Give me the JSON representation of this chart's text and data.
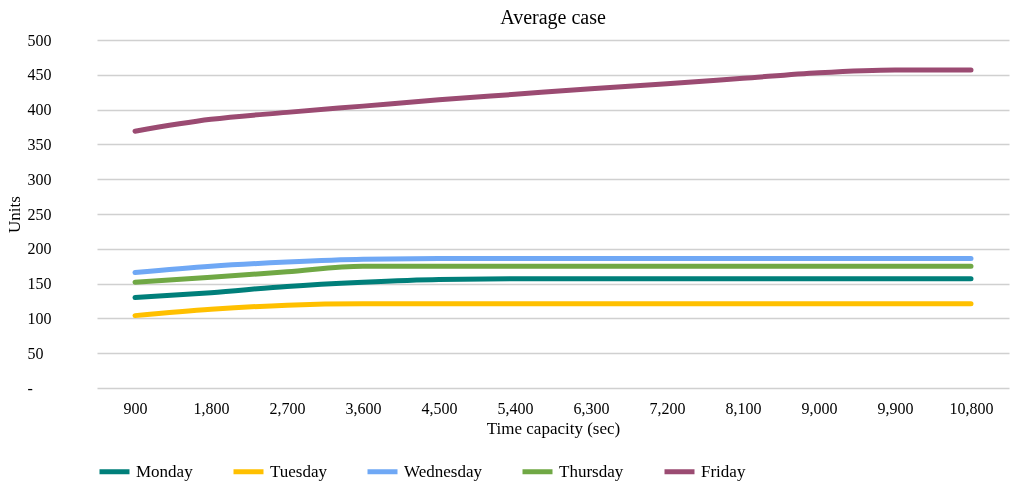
{
  "chart_data": {
    "type": "line",
    "title": "Average case",
    "xlabel": "Time capacity (sec)",
    "ylabel": "Units",
    "categories": [
      "900",
      "1,800",
      "2,700",
      "3,600",
      "4,500",
      "5,400",
      "6,300",
      "7,200",
      "8,100",
      "9,000",
      "9,900",
      "10,800"
    ],
    "series": [
      {
        "name": "Monday",
        "color": "#007f7a",
        "values": [
          130,
          137,
          146,
          152,
          156,
          157,
          157,
          157,
          157,
          157,
          157,
          157
        ]
      },
      {
        "name": "Tuesday",
        "color": "#ffc000",
        "values": [
          104,
          113,
          119,
          121,
          121,
          121,
          121,
          121,
          121,
          121,
          121,
          121
        ]
      },
      {
        "name": "Wednesday",
        "color": "#6fa8f5",
        "values": [
          166,
          175,
          181,
          185,
          186,
          186,
          186,
          186,
          186,
          186,
          186,
          186
        ]
      },
      {
        "name": "Thursday",
        "color": "#70a845",
        "values": [
          152,
          159,
          167,
          175,
          175,
          175,
          175,
          175,
          175,
          175,
          175,
          175
        ]
      },
      {
        "name": "Friday",
        "color": "#9b4b72",
        "values": [
          369,
          386,
          396,
          405,
          414,
          422,
          430,
          437,
          445,
          453,
          457,
          457
        ]
      }
    ],
    "ylim": [
      0,
      500
    ],
    "yticks": [
      {
        "value": 0,
        "label": "-"
      },
      50,
      100,
      150,
      200,
      250,
      300,
      350,
      400,
      450,
      500
    ],
    "grid": "y",
    "legend": "bottom",
    "marker": "none",
    "line_style": "solid"
  }
}
